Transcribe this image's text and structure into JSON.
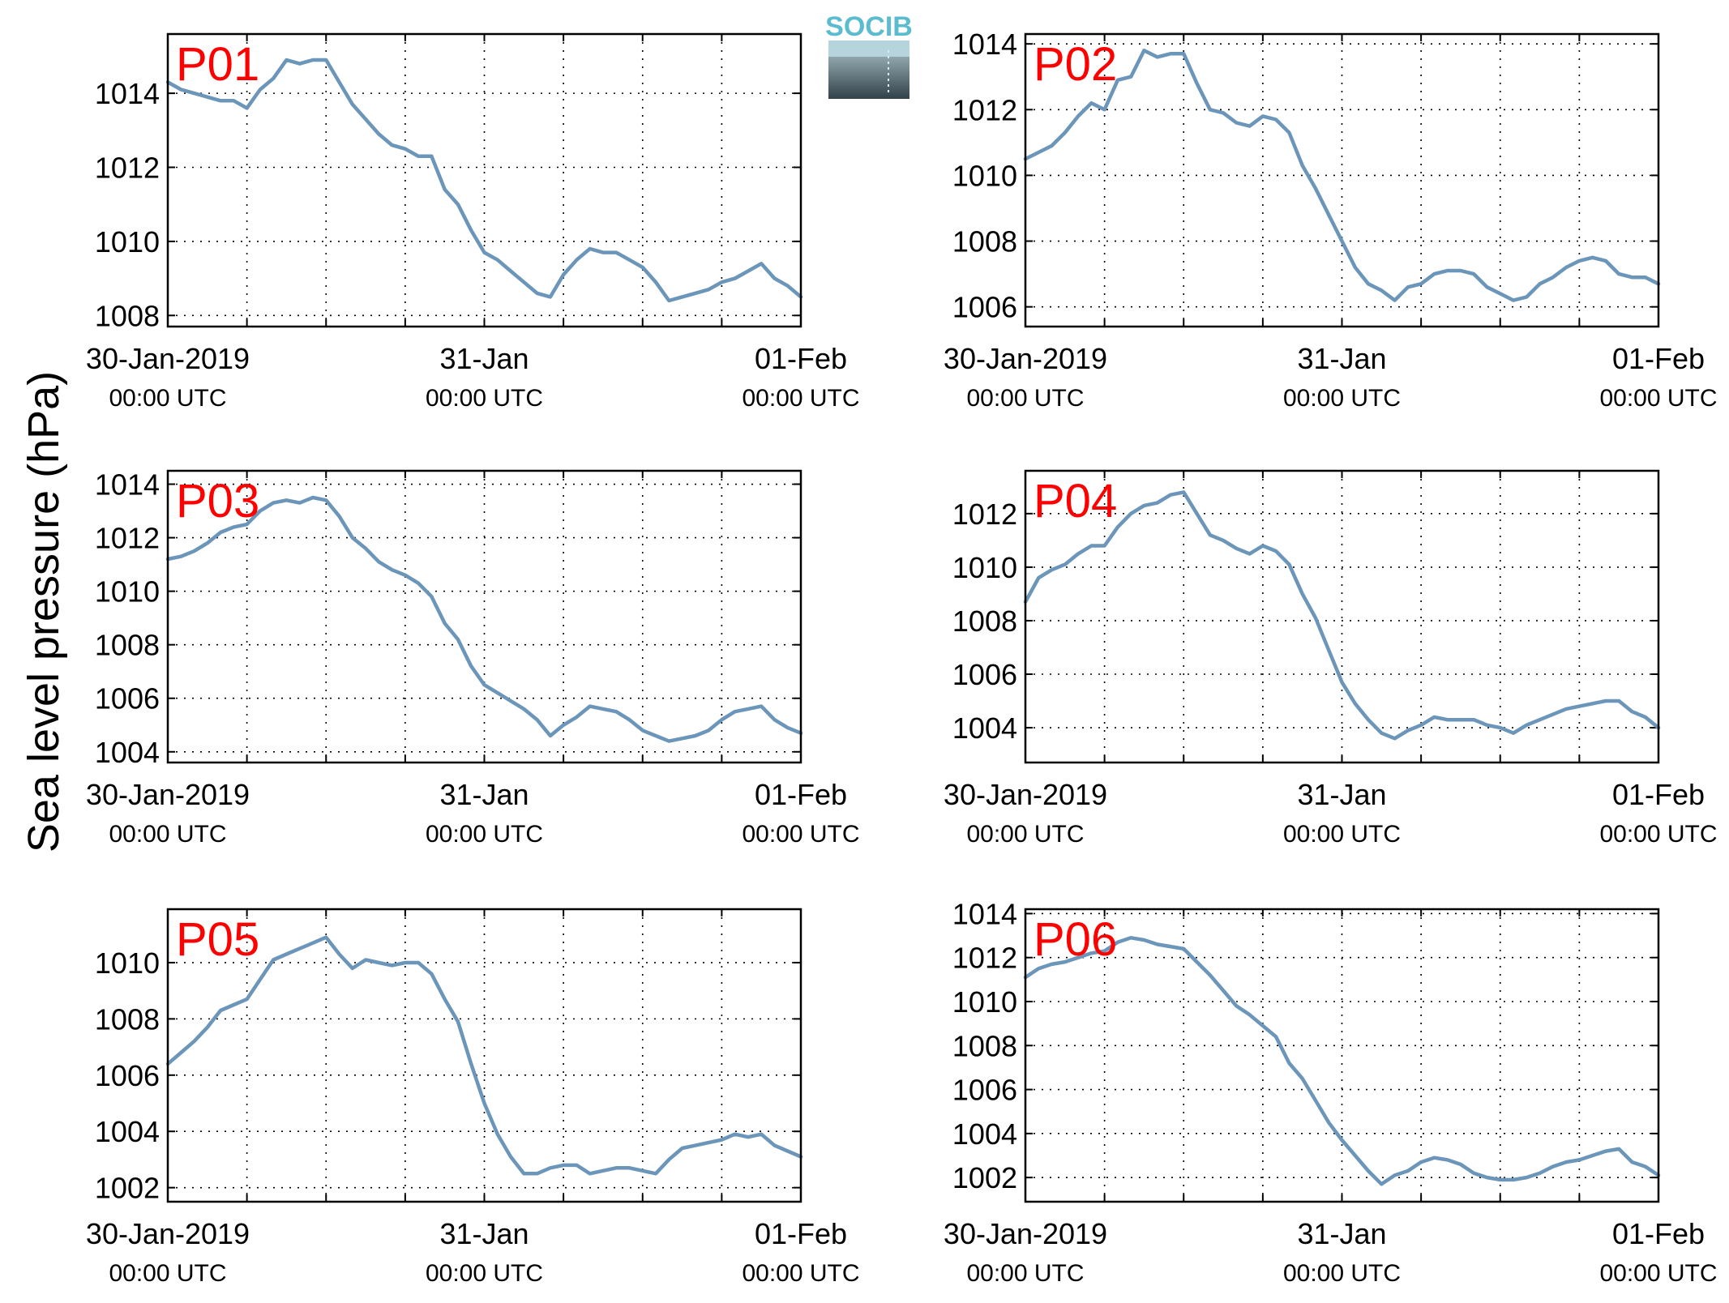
{
  "ylabel": "Sea level pressure (hPa)",
  "logo": {
    "text": "SOCIB",
    "color": "#5bbccf"
  },
  "colors": {
    "line": "#6b96b9",
    "label": "#ff0000",
    "grid": "#000000"
  },
  "chart_data": [
    {
      "type": "line",
      "label": "P01",
      "ylim": [
        1007.7,
        1015.6
      ],
      "yticks": [
        1008,
        1010,
        1012,
        1014
      ],
      "xlim": [
        0,
        48
      ],
      "xticks": [
        0,
        6,
        12,
        18,
        24,
        30,
        36,
        42,
        48
      ],
      "xlabels": [
        {
          "at": 0,
          "date": "30-Jan-2019",
          "time": "00:00 UTC"
        },
        {
          "at": 24,
          "date": "31-Jan",
          "time": "00:00 UTC"
        },
        {
          "at": 48,
          "date": "01-Feb",
          "time": "00:00 UTC"
        }
      ],
      "grid": true,
      "series": [
        {
          "x": [
            0,
            1,
            2,
            3,
            4,
            5,
            6,
            7,
            8,
            9,
            10,
            11,
            12,
            13,
            14,
            15,
            16,
            17,
            18,
            19,
            20,
            21,
            22,
            23,
            24,
            25,
            26,
            27,
            28,
            29,
            30,
            31,
            32,
            33,
            34,
            35,
            36,
            37,
            38,
            39,
            40,
            41,
            42,
            43,
            44,
            45,
            46,
            47,
            48
          ],
          "y": [
            1014.3,
            1014.1,
            1014.0,
            1013.9,
            1013.8,
            1013.8,
            1013.6,
            1014.1,
            1014.4,
            1014.9,
            1014.8,
            1014.9,
            1014.9,
            1014.3,
            1013.7,
            1013.3,
            1012.9,
            1012.6,
            1012.5,
            1012.3,
            1012.3,
            1011.4,
            1011.0,
            1010.3,
            1009.7,
            1009.5,
            1009.2,
            1008.9,
            1008.6,
            1008.5,
            1009.1,
            1009.5,
            1009.8,
            1009.7,
            1009.7,
            1009.5,
            1009.3,
            1008.9,
            1008.4,
            1008.5,
            1008.6,
            1008.7,
            1008.9,
            1009.0,
            1009.2,
            1009.4,
            1009.0,
            1008.8,
            1008.5
          ]
        }
      ]
    },
    {
      "type": "line",
      "label": "P02",
      "ylim": [
        1005.4,
        1014.3
      ],
      "yticks": [
        1006,
        1008,
        1010,
        1012,
        1014
      ],
      "xlim": [
        0,
        48
      ],
      "xticks": [
        0,
        6,
        12,
        18,
        24,
        30,
        36,
        42,
        48
      ],
      "xlabels": [
        {
          "at": 0,
          "date": "30-Jan-2019",
          "time": "00:00 UTC"
        },
        {
          "at": 24,
          "date": "31-Jan",
          "time": "00:00 UTC"
        },
        {
          "at": 48,
          "date": "01-Feb",
          "time": "00:00 UTC"
        }
      ],
      "grid": true,
      "series": [
        {
          "x": [
            0,
            1,
            2,
            3,
            4,
            5,
            6,
            7,
            8,
            9,
            10,
            11,
            12,
            13,
            14,
            15,
            16,
            17,
            18,
            19,
            20,
            21,
            22,
            23,
            24,
            25,
            26,
            27,
            28,
            29,
            30,
            31,
            32,
            33,
            34,
            35,
            36,
            37,
            38,
            39,
            40,
            41,
            42,
            43,
            44,
            45,
            46,
            47,
            48
          ],
          "y": [
            1010.5,
            1010.7,
            1010.9,
            1011.3,
            1011.8,
            1012.2,
            1012.0,
            1012.9,
            1013.0,
            1013.8,
            1013.6,
            1013.7,
            1013.7,
            1012.8,
            1012.0,
            1011.9,
            1011.6,
            1011.5,
            1011.8,
            1011.7,
            1011.3,
            1010.3,
            1009.6,
            1008.8,
            1008.0,
            1007.2,
            1006.7,
            1006.5,
            1006.2,
            1006.6,
            1006.7,
            1007.0,
            1007.1,
            1007.1,
            1007.0,
            1006.6,
            1006.4,
            1006.2,
            1006.3,
            1006.7,
            1006.9,
            1007.2,
            1007.4,
            1007.5,
            1007.4,
            1007.0,
            1006.9,
            1006.9,
            1006.7
          ]
        }
      ]
    },
    {
      "type": "line",
      "label": "P03",
      "ylim": [
        1003.6,
        1014.5
      ],
      "yticks": [
        1004,
        1006,
        1008,
        1010,
        1012,
        1014
      ],
      "xlim": [
        0,
        48
      ],
      "xticks": [
        0,
        6,
        12,
        18,
        24,
        30,
        36,
        42,
        48
      ],
      "xlabels": [
        {
          "at": 0,
          "date": "30-Jan-2019",
          "time": "00:00 UTC"
        },
        {
          "at": 24,
          "date": "31-Jan",
          "time": "00:00 UTC"
        },
        {
          "at": 48,
          "date": "01-Feb",
          "time": "00:00 UTC"
        }
      ],
      "grid": true,
      "series": [
        {
          "x": [
            0,
            1,
            2,
            3,
            4,
            5,
            6,
            7,
            8,
            9,
            10,
            11,
            12,
            13,
            14,
            15,
            16,
            17,
            18,
            19,
            20,
            21,
            22,
            23,
            24,
            25,
            26,
            27,
            28,
            29,
            30,
            31,
            32,
            33,
            34,
            35,
            36,
            37,
            38,
            39,
            40,
            41,
            42,
            43,
            44,
            45,
            46,
            47,
            48
          ],
          "y": [
            1011.2,
            1011.3,
            1011.5,
            1011.8,
            1012.2,
            1012.4,
            1012.5,
            1013.0,
            1013.3,
            1013.4,
            1013.3,
            1013.5,
            1013.4,
            1012.8,
            1012.0,
            1011.6,
            1011.1,
            1010.8,
            1010.6,
            1010.3,
            1009.8,
            1008.8,
            1008.2,
            1007.2,
            1006.5,
            1006.2,
            1005.9,
            1005.6,
            1005.2,
            1004.6,
            1005.0,
            1005.3,
            1005.7,
            1005.6,
            1005.5,
            1005.2,
            1004.8,
            1004.6,
            1004.4,
            1004.5,
            1004.6,
            1004.8,
            1005.2,
            1005.5,
            1005.6,
            1005.7,
            1005.2,
            1004.9,
            1004.7
          ]
        }
      ]
    },
    {
      "type": "line",
      "label": "P04",
      "ylim": [
        1002.7,
        1013.6
      ],
      "yticks": [
        1004,
        1006,
        1008,
        1010,
        1012
      ],
      "xlim": [
        0,
        48
      ],
      "xticks": [
        0,
        6,
        12,
        18,
        24,
        30,
        36,
        42,
        48
      ],
      "xlabels": [
        {
          "at": 0,
          "date": "30-Jan-2019",
          "time": "00:00 UTC"
        },
        {
          "at": 24,
          "date": "31-Jan",
          "time": "00:00 UTC"
        },
        {
          "at": 48,
          "date": "01-Feb",
          "time": "00:00 UTC"
        }
      ],
      "grid": true,
      "series": [
        {
          "x": [
            0,
            1,
            2,
            3,
            4,
            5,
            6,
            7,
            8,
            9,
            10,
            11,
            12,
            13,
            14,
            15,
            16,
            17,
            18,
            19,
            20,
            21,
            22,
            23,
            24,
            25,
            26,
            27,
            28,
            29,
            30,
            31,
            32,
            33,
            34,
            35,
            36,
            37,
            38,
            39,
            40,
            41,
            42,
            43,
            44,
            45,
            46,
            47,
            48
          ],
          "y": [
            1008.7,
            1009.6,
            1009.9,
            1010.1,
            1010.5,
            1010.8,
            1010.8,
            1011.5,
            1012.0,
            1012.3,
            1012.4,
            1012.7,
            1012.8,
            1012.0,
            1011.2,
            1011.0,
            1010.7,
            1010.5,
            1010.8,
            1010.6,
            1010.1,
            1009.0,
            1008.1,
            1006.9,
            1005.7,
            1004.9,
            1004.3,
            1003.8,
            1003.6,
            1003.9,
            1004.1,
            1004.4,
            1004.3,
            1004.3,
            1004.3,
            1004.1,
            1004.0,
            1003.8,
            1004.1,
            1004.3,
            1004.5,
            1004.7,
            1004.8,
            1004.9,
            1005.0,
            1005.0,
            1004.6,
            1004.4,
            1004.0
          ]
        }
      ]
    },
    {
      "type": "line",
      "label": "P05",
      "ylim": [
        1001.5,
        1011.9
      ],
      "yticks": [
        1002,
        1004,
        1006,
        1008,
        1010
      ],
      "xlim": [
        0,
        48
      ],
      "xticks": [
        0,
        6,
        12,
        18,
        24,
        30,
        36,
        42,
        48
      ],
      "xlabels": [
        {
          "at": 0,
          "date": "30-Jan-2019",
          "time": "00:00 UTC"
        },
        {
          "at": 24,
          "date": "31-Jan",
          "time": "00:00 UTC"
        },
        {
          "at": 48,
          "date": "01-Feb",
          "time": "00:00 UTC"
        }
      ],
      "grid": true,
      "series": [
        {
          "x": [
            0,
            1,
            2,
            3,
            4,
            5,
            6,
            7,
            8,
            9,
            10,
            11,
            12,
            13,
            14,
            15,
            16,
            17,
            18,
            19,
            20,
            21,
            22,
            23,
            24,
            25,
            26,
            27,
            28,
            29,
            30,
            31,
            32,
            33,
            34,
            35,
            36,
            37,
            38,
            39,
            40,
            41,
            42,
            43,
            44,
            45,
            46,
            47,
            48
          ],
          "y": [
            1006.4,
            1006.8,
            1007.2,
            1007.7,
            1008.3,
            1008.5,
            1008.7,
            1009.4,
            1010.1,
            1010.3,
            1010.5,
            1010.7,
            1010.9,
            1010.3,
            1009.8,
            1010.1,
            1010.0,
            1009.9,
            1010.0,
            1010.0,
            1009.6,
            1008.7,
            1007.9,
            1006.4,
            1005.0,
            1003.9,
            1003.1,
            1002.5,
            1002.5,
            1002.7,
            1002.8,
            1002.8,
            1002.5,
            1002.6,
            1002.7,
            1002.7,
            1002.6,
            1002.5,
            1003.0,
            1003.4,
            1003.5,
            1003.6,
            1003.7,
            1003.9,
            1003.8,
            1003.9,
            1003.5,
            1003.3,
            1003.1
          ]
        }
      ]
    },
    {
      "type": "line",
      "label": "P06",
      "ylim": [
        1000.9,
        1014.2
      ],
      "yticks": [
        1002,
        1004,
        1006,
        1008,
        1010,
        1012,
        1014
      ],
      "xlim": [
        0,
        48
      ],
      "xticks": [
        0,
        6,
        12,
        18,
        24,
        30,
        36,
        42,
        48
      ],
      "xlabels": [
        {
          "at": 0,
          "date": "30-Jan-2019",
          "time": "00:00 UTC"
        },
        {
          "at": 24,
          "date": "31-Jan",
          "time": "00:00 UTC"
        },
        {
          "at": 48,
          "date": "01-Feb",
          "time": "00:00 UTC"
        }
      ],
      "grid": true,
      "series": [
        {
          "x": [
            0,
            1,
            2,
            3,
            4,
            5,
            6,
            7,
            8,
            9,
            10,
            11,
            12,
            13,
            14,
            15,
            16,
            17,
            18,
            19,
            20,
            21,
            22,
            23,
            24,
            25,
            26,
            27,
            28,
            29,
            30,
            31,
            32,
            33,
            34,
            35,
            36,
            37,
            38,
            39,
            40,
            41,
            42,
            43,
            44,
            45,
            46,
            47,
            48
          ],
          "y": [
            1011.1,
            1011.5,
            1011.7,
            1011.8,
            1012.0,
            1012.2,
            1012.3,
            1012.7,
            1012.9,
            1012.8,
            1012.6,
            1012.5,
            1012.4,
            1011.8,
            1011.2,
            1010.5,
            1009.8,
            1009.4,
            1008.9,
            1008.4,
            1007.2,
            1006.5,
            1005.5,
            1004.5,
            1003.7,
            1003.0,
            1002.3,
            1001.7,
            1002.1,
            1002.3,
            1002.7,
            1002.9,
            1002.8,
            1002.6,
            1002.2,
            1002.0,
            1001.9,
            1001.9,
            1002.0,
            1002.2,
            1002.5,
            1002.7,
            1002.8,
            1003.0,
            1003.2,
            1003.3,
            1002.7,
            1002.5,
            1002.1
          ]
        }
      ]
    }
  ]
}
